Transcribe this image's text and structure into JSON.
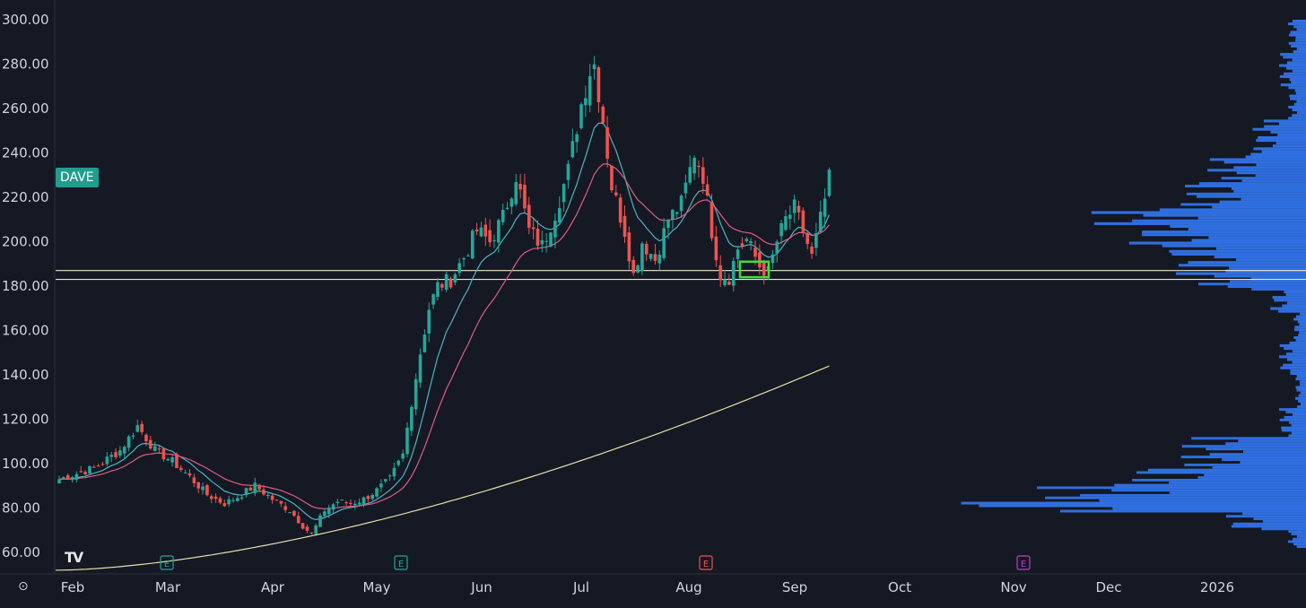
{
  "ticker": "DAVE",
  "logo": "TV",
  "settings_icon": "settings-icon",
  "colors": {
    "background": "#151924",
    "up": "#26a69a",
    "down": "#ef5350",
    "ema_fast": "#4fb3c4",
    "ema_mid": "#e05c82",
    "sma_long": "#e6dfa8",
    "volume_profile": "#2f6fe0",
    "levels": "#ece8c8",
    "highlight": "#3ee03a",
    "earnings_past": "#26a69a",
    "earnings_recent": "#ef5350",
    "earnings_future": "#c23ad1"
  },
  "chart_data": {
    "type": "candlestick",
    "y_ticks": [
      "300.00",
      "280.00",
      "260.00",
      "240.00",
      "220.00",
      "200.00",
      "180.00",
      "160.00",
      "140.00",
      "120.00",
      "100.00",
      "80.00",
      "60.00"
    ],
    "ylim": [
      57,
      301
    ],
    "x_ticks": [
      "Feb",
      "Mar",
      "Apr",
      "May",
      "Jun",
      "Jul",
      "Aug",
      "Sep",
      "Oct",
      "Nov",
      "Dec",
      "2026"
    ],
    "horizontal_levels": [
      187,
      183
    ],
    "earnings_markers": [
      {
        "label": "E",
        "month": "Mar",
        "state": "past"
      },
      {
        "label": "E",
        "month": "May",
        "state": "past"
      },
      {
        "label": "E",
        "month": "Aug",
        "state": "recent"
      },
      {
        "label": "E",
        "month": "Nov",
        "state": "future"
      }
    ],
    "price_keyframes": [
      [
        0,
        93
      ],
      [
        8,
        98
      ],
      [
        14,
        106
      ],
      [
        18,
        117
      ],
      [
        22,
        106
      ],
      [
        26,
        101
      ],
      [
        30,
        94
      ],
      [
        34,
        86
      ],
      [
        38,
        82
      ],
      [
        41,
        85
      ],
      [
        45,
        90
      ],
      [
        49,
        84
      ],
      [
        53,
        79
      ],
      [
        56,
        72
      ],
      [
        58,
        68
      ],
      [
        61,
        79
      ],
      [
        64,
        83
      ],
      [
        67,
        82
      ],
      [
        70,
        84
      ],
      [
        73,
        88
      ],
      [
        76,
        93
      ],
      [
        79,
        104
      ],
      [
        81,
        128
      ],
      [
        83,
        150
      ],
      [
        85,
        170
      ],
      [
        87,
        180
      ],
      [
        90,
        183
      ],
      [
        93,
        193
      ],
      [
        96,
        205
      ],
      [
        99,
        200
      ],
      [
        102,
        211
      ],
      [
        105,
        230
      ],
      [
        108,
        205
      ],
      [
        111,
        198
      ],
      [
        114,
        213
      ],
      [
        117,
        232
      ],
      [
        120,
        262
      ],
      [
        122,
        277
      ],
      [
        123,
        280
      ],
      [
        125,
        255
      ],
      [
        127,
        225
      ],
      [
        130,
        205
      ],
      [
        132,
        185
      ],
      [
        134,
        200
      ],
      [
        137,
        192
      ],
      [
        140,
        210
      ],
      [
        143,
        217
      ],
      [
        146,
        240
      ],
      [
        148,
        230
      ],
      [
        150,
        205
      ],
      [
        152,
        185
      ],
      [
        154,
        184
      ],
      [
        156,
        197
      ],
      [
        158,
        201
      ],
      [
        161,
        189
      ],
      [
        163,
        186
      ],
      [
        165,
        200
      ],
      [
        167,
        210
      ],
      [
        169,
        215
      ],
      [
        171,
        205
      ],
      [
        173,
        193
      ],
      [
        175,
        210
      ],
      [
        177,
        228
      ]
    ],
    "volume_profile_note": "horizontal volume-by-price histogram on right edge",
    "highlight_box": {
      "price_low": 184,
      "price_high": 191
    }
  }
}
